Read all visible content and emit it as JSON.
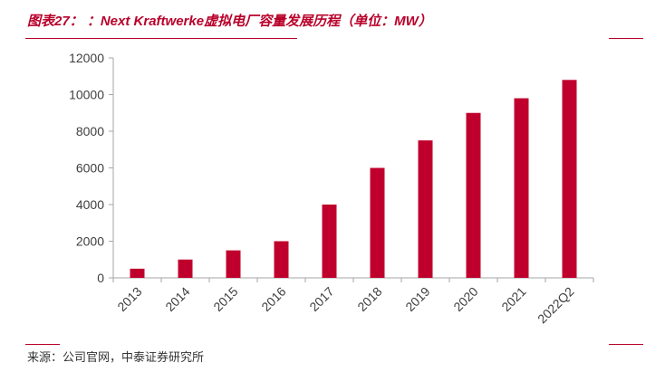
{
  "header": {
    "title": "图表27： ：Next Kraftwerke虚拟电厂容量发展历程（单位：MW）"
  },
  "footer": {
    "source": "来源：公司官网，中泰证券研究所"
  },
  "colors": {
    "accent": "#b9002a",
    "bar": "#c0002c",
    "axis": "#a6a6a6",
    "tick_text": "#404040"
  },
  "chart_data": {
    "type": "bar",
    "title": "",
    "xlabel": "",
    "ylabel": "",
    "categories": [
      "2013",
      "2014",
      "2015",
      "2016",
      "2017",
      "2018",
      "2019",
      "2020",
      "2021",
      "2022Q2"
    ],
    "values": [
      500,
      1000,
      1500,
      2000,
      4000,
      6000,
      7500,
      9000,
      9800,
      10800
    ],
    "ylim": [
      0,
      12000
    ],
    "yticks": [
      0,
      2000,
      4000,
      6000,
      8000,
      10000,
      12000
    ],
    "yticks_labels": [
      "0",
      "2000",
      "4000",
      "6000",
      "8000",
      "10000",
      "12000"
    ],
    "grid": false,
    "legend": "none"
  }
}
